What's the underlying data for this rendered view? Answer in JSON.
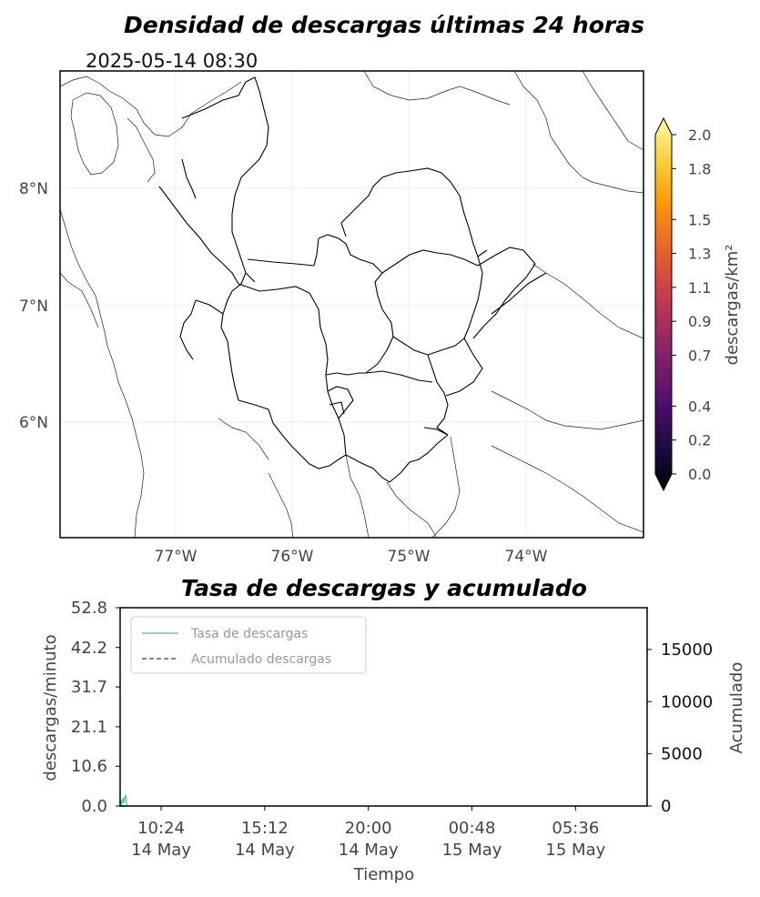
{
  "map": {
    "title": "Densidad de descargas últimas 24 horas",
    "timestamp": "2025-05-14 08:30",
    "lon_ticks": [
      "77°W",
      "76°W",
      "75°W",
      "74°W"
    ],
    "lat_ticks": [
      "8°N",
      "7°N",
      "6°N"
    ]
  },
  "colorbar": {
    "label": "descargas/km²",
    "ticks": [
      "2.0",
      "1.8",
      "1.5",
      "1.3",
      "1.1",
      "0.9",
      "0.7",
      "0.4",
      "0.2",
      "0.0"
    ],
    "colormap": "inferno",
    "extend": "both",
    "colors": [
      "#000004",
      "#1b0c41",
      "#4a0c6b",
      "#781c6d",
      "#a52c60",
      "#cf4446",
      "#ed6925",
      "#fb9b06",
      "#f7d13d",
      "#fcffa4"
    ]
  },
  "timeseries": {
    "title": "Tasa de descargas y acumulado",
    "xlabel": "Tiempo",
    "ylabel_left": "descargas/minuto",
    "ylabel_right": "Acumulado",
    "legend": [
      "Tasa de descargas",
      "Acumulado descargas"
    ],
    "x_ticks": [
      {
        "time": "10:24",
        "date": "14 May"
      },
      {
        "time": "15:12",
        "date": "14 May"
      },
      {
        "time": "20:00",
        "date": "14 May"
      },
      {
        "time": "00:48",
        "date": "15 May"
      },
      {
        "time": "05:36",
        "date": "15 May"
      }
    ],
    "y_left_ticks": [
      "52.8",
      "42.2",
      "31.7",
      "21.1",
      "10.6",
      "0.0"
    ],
    "y_right_ticks": [
      "15000",
      "10000",
      "5000",
      "0"
    ]
  },
  "chart_data": [
    {
      "type": "heatmap",
      "title": "Densidad de descargas últimas 24 horas",
      "x_ticks": [
        "77°W",
        "76°W",
        "75°W",
        "74°W"
      ],
      "y_ticks": [
        "8°N",
        "7°N",
        "6°N"
      ],
      "colorbar_label": "descargas/km²",
      "colorbar_range": [
        0.0,
        2.0
      ],
      "grid": true
    },
    {
      "type": "line",
      "title": "Tasa de descargas y acumulado",
      "xlabel": "Tiempo",
      "ylabel": "descargas/minuto",
      "ylabel_right": "Acumulado",
      "ylim": [
        0.0,
        52.8
      ],
      "ylim_right": [
        0,
        19000
      ],
      "legend_position": "top-left",
      "series": [
        {
          "name": "Tasa de descargas",
          "axis": "left",
          "style": "solid",
          "color": "#4bbfbf",
          "x": [
            "08:30",
            "08:32",
            "08:35",
            "08:38",
            "08:40",
            "08:42",
            "08:45",
            "08:48",
            "08:50"
          ],
          "y": [
            0.2,
            1.5,
            0.4,
            2.2,
            0.8,
            1.8,
            3.0,
            0.5,
            0.0
          ]
        },
        {
          "name": "Acumulado descargas",
          "axis": "right",
          "style": "dashed",
          "color": "#2b6d8f",
          "x": [
            "08:30",
            "08:50"
          ],
          "y": [
            0,
            15
          ]
        }
      ]
    }
  ]
}
